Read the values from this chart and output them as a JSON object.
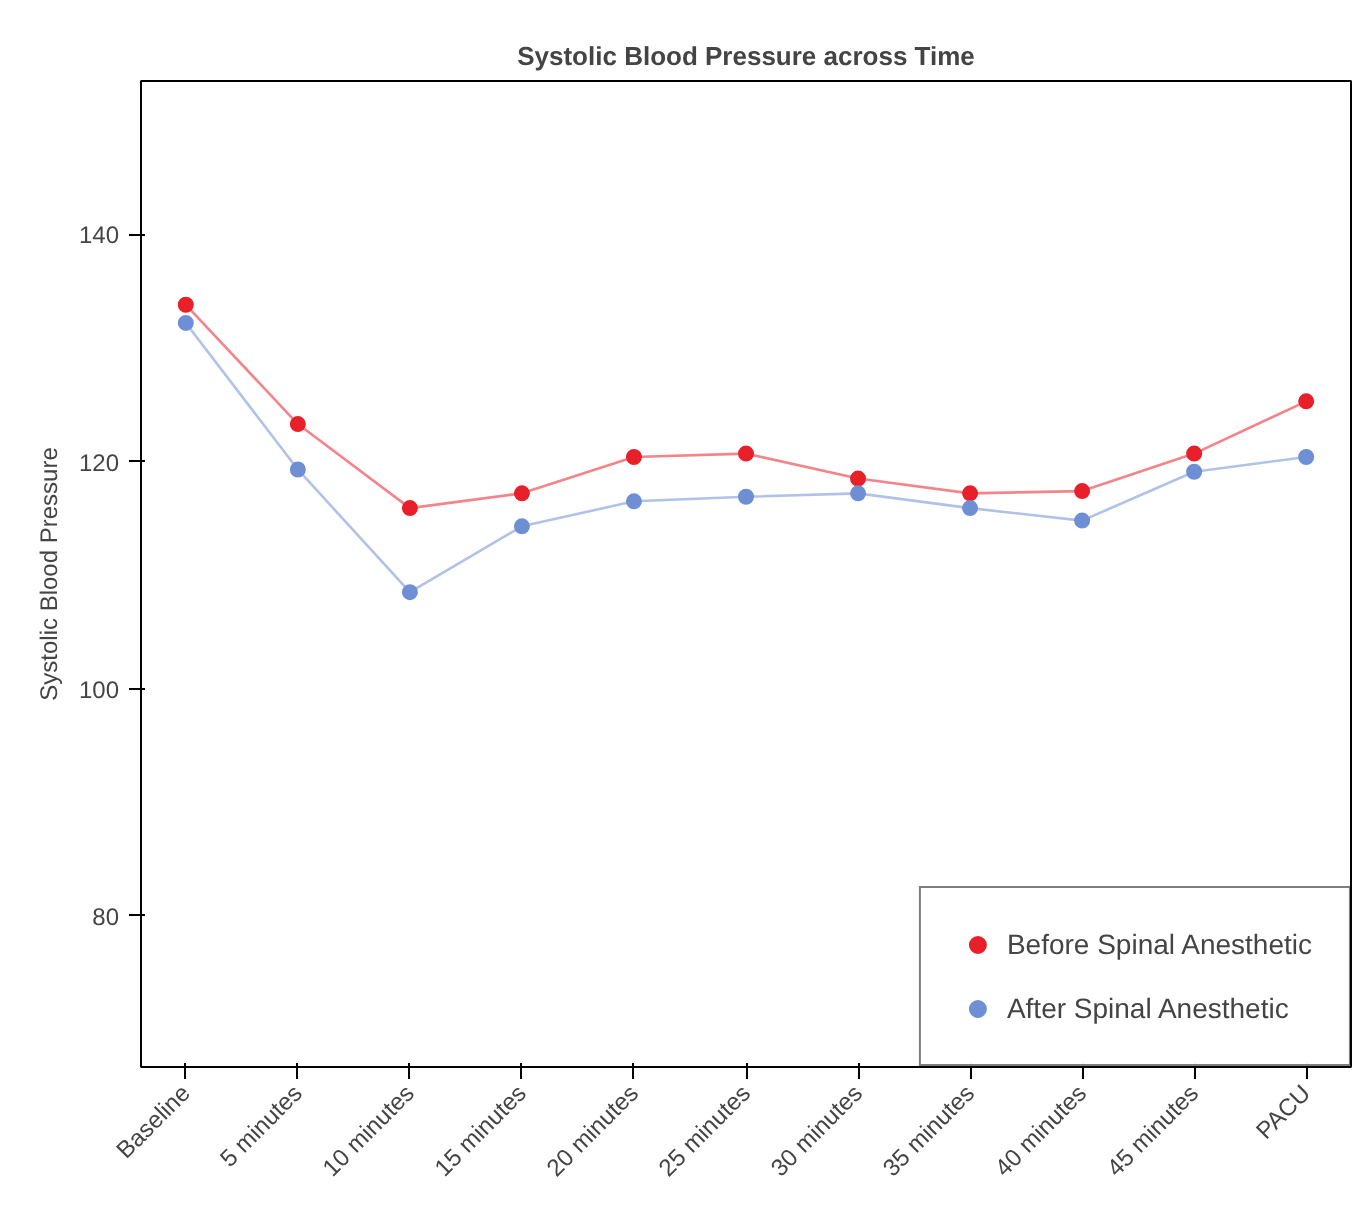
{
  "chart_data": {
    "type": "line",
    "title": "Systolic Blood Pressure across Time",
    "ylabel": "Systolic Blood Pressure",
    "categories": [
      "Baseline",
      "5 minutes",
      "10 minutes",
      "15 minutes",
      "20 minutes",
      "25 minutes",
      "30 minutes",
      "35 minutes",
      "40 minutes",
      "45 minutes",
      "PACU"
    ],
    "series": [
      {
        "name": "Before Spinal Anesthetic",
        "color": "#e8202a",
        "values": [
          133.8,
          123.3,
          115.9,
          117.2,
          120.4,
          120.7,
          118.5,
          117.2,
          117.4,
          120.7,
          125.3
        ]
      },
      {
        "name": "After Spinal Anesthetic",
        "color": "#6f8fd4",
        "values": [
          132.2,
          119.3,
          108.5,
          114.3,
          116.5,
          116.9,
          117.2,
          115.9,
          114.8,
          119.1,
          120.4
        ]
      }
    ],
    "ylim": [
      66.7,
      153.5
    ],
    "yticks": [
      80,
      100,
      120,
      140
    ],
    "grid": false,
    "legend": "bottom right",
    "marker": "circle",
    "line_style": "solid"
  }
}
